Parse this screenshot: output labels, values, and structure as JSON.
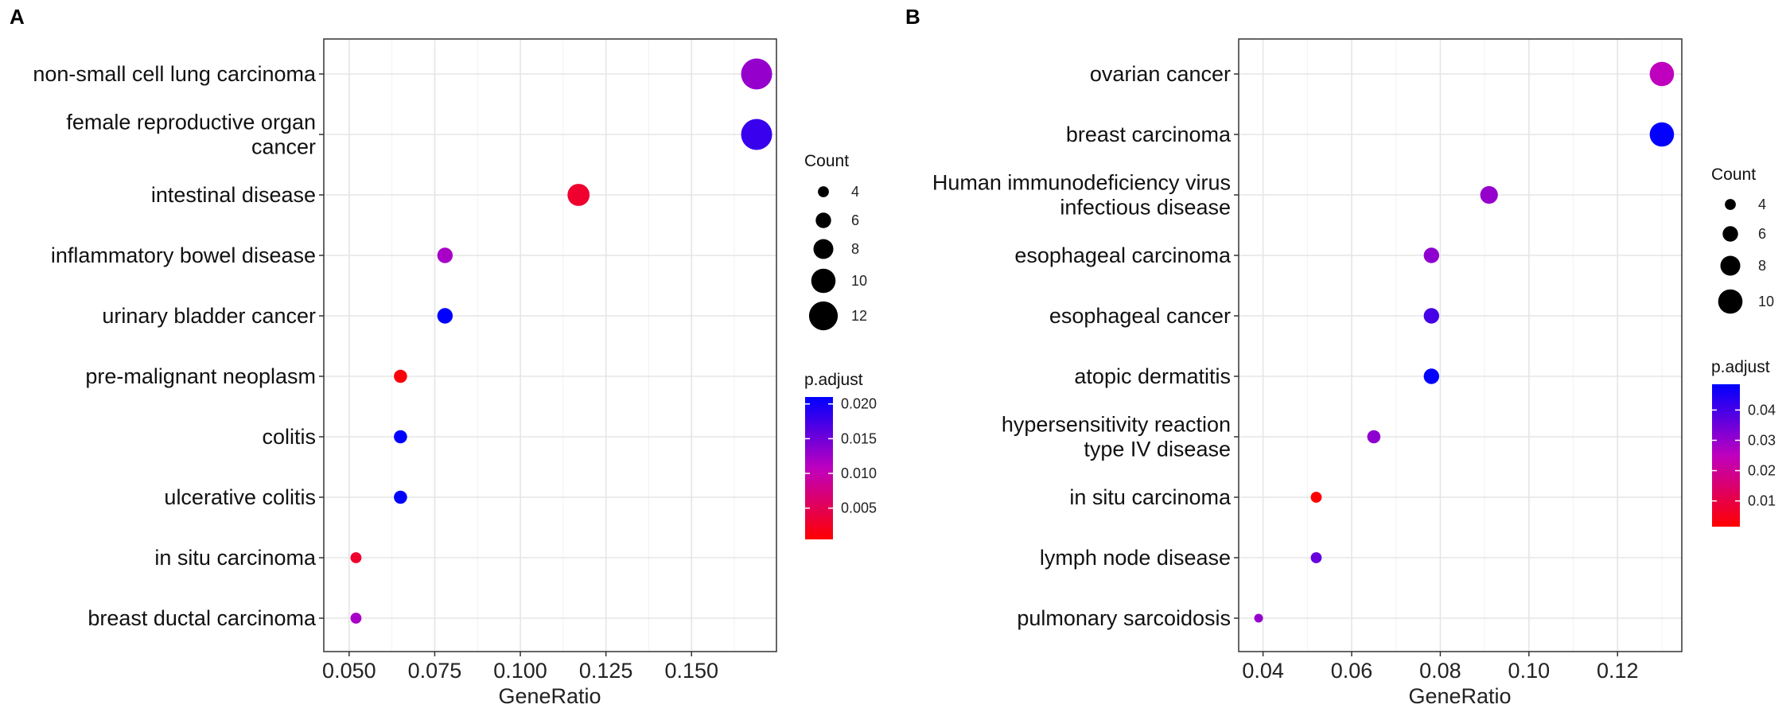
{
  "chart_data": [
    {
      "panel_label": "A",
      "type": "scatter",
      "title": "",
      "xlabel": "GeneRatio",
      "ylabel": "",
      "xlim": [
        0.0426,
        0.1748
      ],
      "xticks": [
        0.05,
        0.075,
        0.1,
        0.125,
        0.15
      ],
      "xtick_labels": [
        "0.050",
        "0.075",
        "0.100",
        "0.125",
        "0.150"
      ],
      "grid": true,
      "legend_position": "right",
      "categories": [
        "non-small cell lung carcinoma",
        "female reproductive organ cancer",
        "intestinal disease",
        "inflammatory bowel disease",
        "urinary bladder cancer",
        "pre-malignant neoplasm",
        "colitis",
        "ulcerative colitis",
        "in situ carcinoma",
        "breast ductal carcinoma"
      ],
      "category_lines": [
        [
          "non-small cell lung carcinoma"
        ],
        [
          "female reproductive organ",
          "cancer"
        ],
        [
          "intestinal disease"
        ],
        [
          "inflammatory bowel disease"
        ],
        [
          "urinary bladder cancer"
        ],
        [
          "pre-malignant neoplasm"
        ],
        [
          "colitis"
        ],
        [
          "ulcerative colitis"
        ],
        [
          "in situ carcinoma"
        ],
        [
          "breast ductal carcinoma"
        ]
      ],
      "points": [
        {
          "category": "non-small cell lung carcinoma",
          "gene_ratio": 0.169,
          "count": 13,
          "p_adjust": 0.013
        },
        {
          "category": "female reproductive organ cancer",
          "gene_ratio": 0.169,
          "count": 13,
          "p_adjust": 0.018
        },
        {
          "category": "intestinal disease",
          "gene_ratio": 0.117,
          "count": 9,
          "p_adjust": 0.003
        },
        {
          "category": "inflammatory bowel disease",
          "gene_ratio": 0.078,
          "count": 6,
          "p_adjust": 0.012
        },
        {
          "category": "urinary bladder cancer",
          "gene_ratio": 0.078,
          "count": 6,
          "p_adjust": 0.021
        },
        {
          "category": "pre-malignant neoplasm",
          "gene_ratio": 0.065,
          "count": 5,
          "p_adjust": 0.001
        },
        {
          "category": "colitis",
          "gene_ratio": 0.065,
          "count": 5,
          "p_adjust": 0.021
        },
        {
          "category": "ulcerative colitis",
          "gene_ratio": 0.065,
          "count": 5,
          "p_adjust": 0.021
        },
        {
          "category": "in situ carcinoma",
          "gene_ratio": 0.052,
          "count": 4,
          "p_adjust": 0.003
        },
        {
          "category": "breast ductal carcinoma",
          "gene_ratio": 0.052,
          "count": 4,
          "p_adjust": 0.012
        }
      ],
      "size_legend": {
        "title": "Count",
        "values": [
          4,
          6,
          8,
          10,
          12
        ]
      },
      "color_legend": {
        "title": "p.adjust",
        "range": [
          0.0005,
          0.021
        ],
        "ticks": [
          0.005,
          0.01,
          0.015,
          0.02
        ],
        "tick_labels": [
          "0.005",
          "0.010",
          "0.015",
          "0.020"
        ],
        "low_color": "#ff0000",
        "high_color": "#0000ff"
      }
    },
    {
      "panel_label": "B",
      "type": "scatter",
      "title": "",
      "xlabel": "GeneRatio",
      "ylabel": "",
      "xlim": [
        0.0345,
        0.1345
      ],
      "xticks": [
        0.04,
        0.06,
        0.08,
        0.1,
        0.12
      ],
      "xtick_labels": [
        "0.04",
        "0.06",
        "0.08",
        "0.10",
        "0.12"
      ],
      "grid": true,
      "legend_position": "right",
      "categories": [
        "ovarian cancer",
        "breast carcinoma",
        "Human immunodeficiency virus infectious disease",
        "esophageal carcinoma",
        "esophageal cancer",
        "atopic dermatitis",
        "hypersensitivity reaction type IV disease",
        "in situ carcinoma",
        "lymph node disease",
        "pulmonary sarcoidosis"
      ],
      "category_lines": [
        [
          "ovarian cancer"
        ],
        [
          "breast carcinoma"
        ],
        [
          "Human immunodeficiency virus",
          "infectious disease"
        ],
        [
          "esophageal carcinoma"
        ],
        [
          "esophageal cancer"
        ],
        [
          "atopic dermatitis"
        ],
        [
          "hypersensitivity reaction",
          "type IV disease"
        ],
        [
          "in situ carcinoma"
        ],
        [
          "lymph node disease"
        ],
        [
          "pulmonary sarcoidosis"
        ]
      ],
      "points": [
        {
          "category": "ovarian cancer",
          "gene_ratio": 0.13,
          "count": 10,
          "p_adjust": 0.025
        },
        {
          "category": "breast carcinoma",
          "gene_ratio": 0.13,
          "count": 10,
          "p_adjust": 0.048
        },
        {
          "category": "Human immunodeficiency virus infectious disease",
          "gene_ratio": 0.091,
          "count": 7,
          "p_adjust": 0.03
        },
        {
          "category": "esophageal carcinoma",
          "gene_ratio": 0.078,
          "count": 6,
          "p_adjust": 0.031
        },
        {
          "category": "esophageal cancer",
          "gene_ratio": 0.078,
          "count": 6,
          "p_adjust": 0.04
        },
        {
          "category": "atopic dermatitis",
          "gene_ratio": 0.078,
          "count": 6,
          "p_adjust": 0.048
        },
        {
          "category": "hypersensitivity reaction type IV disease",
          "gene_ratio": 0.065,
          "count": 5,
          "p_adjust": 0.031
        },
        {
          "category": "in situ carcinoma",
          "gene_ratio": 0.052,
          "count": 4,
          "p_adjust": 0.002
        },
        {
          "category": "lymph node disease",
          "gene_ratio": 0.052,
          "count": 4,
          "p_adjust": 0.036
        },
        {
          "category": "pulmonary sarcoidosis",
          "gene_ratio": 0.039,
          "count": 3,
          "p_adjust": 0.03
        }
      ],
      "size_legend": {
        "title": "Count",
        "values": [
          4,
          6,
          8,
          10
        ]
      },
      "color_legend": {
        "title": "p.adjust",
        "range": [
          0.0015,
          0.0485
        ],
        "ticks": [
          0.01,
          0.02,
          0.03,
          0.04
        ],
        "tick_labels": [
          "0.01",
          "0.02",
          "0.03",
          "0.04"
        ],
        "low_color": "#ff0000",
        "high_color": "#0000ff"
      }
    }
  ]
}
